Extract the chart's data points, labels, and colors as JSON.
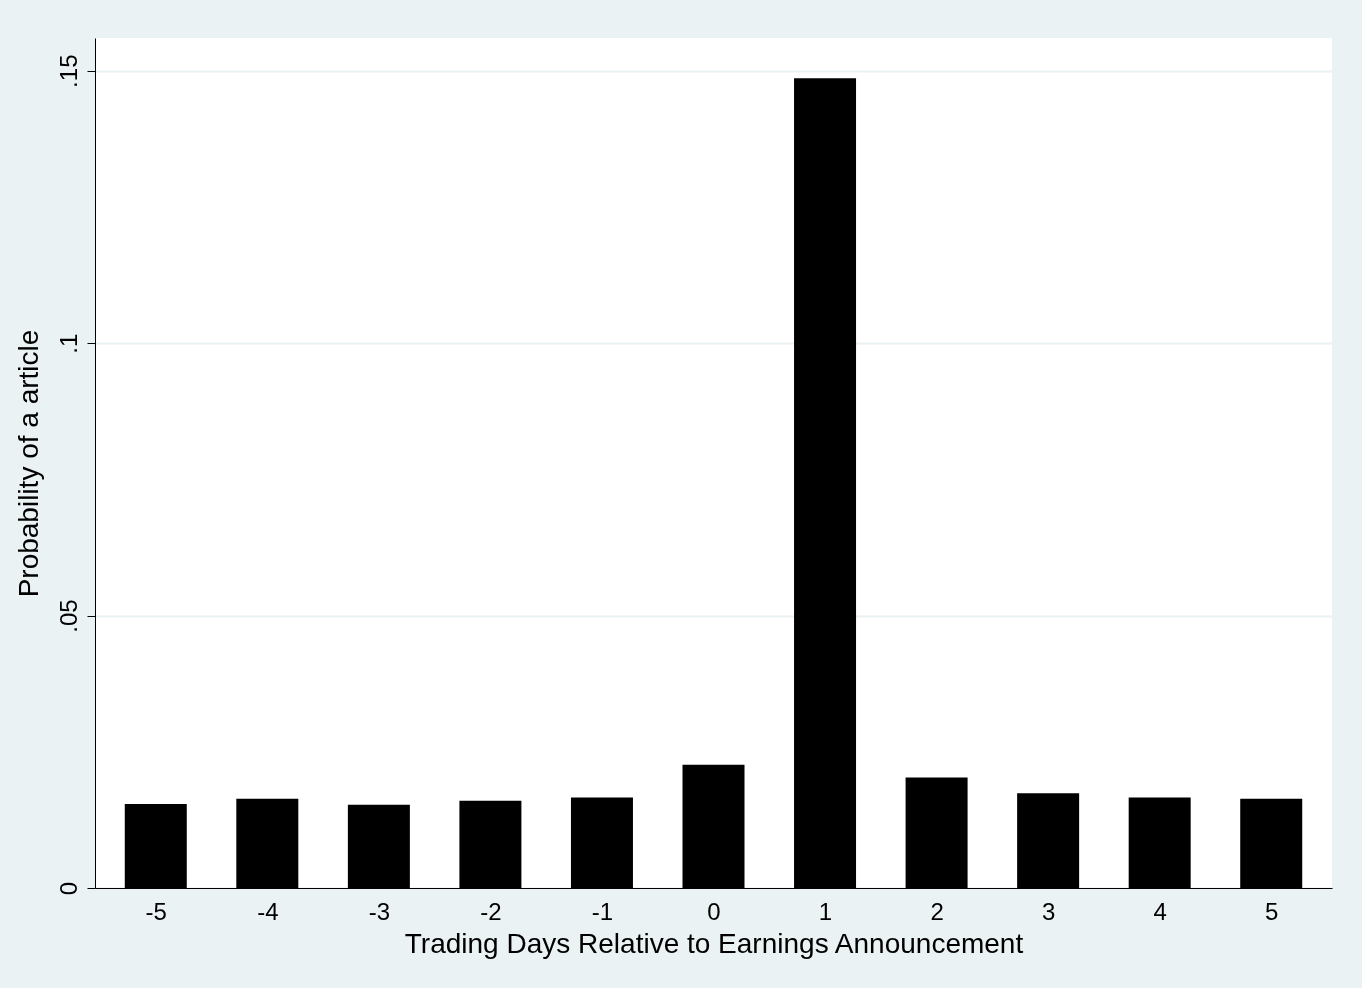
{
  "chart_data": {
    "type": "bar",
    "xlabel": "Trading Days Relative to Earnings Announcement",
    "ylabel": "Probability of a article",
    "categories": [
      "-5",
      "-4",
      "-3",
      "-2",
      "-1",
      "0",
      "1",
      "2",
      "3",
      "4",
      "5"
    ],
    "values": [
      0.0154,
      0.0164,
      0.0153,
      0.016,
      0.0166,
      0.0226,
      0.1486,
      0.0203,
      0.0174,
      0.0166,
      0.0164
    ],
    "color": "#000000",
    "ylim": [
      0,
      0.156
    ],
    "yticks": [
      0,
      {
        "value": 0.05,
        "label": ".05"
      },
      {
        "value": 0.1,
        "label": ".1"
      },
      {
        "value": 0.15,
        "label": ".15"
      }
    ],
    "grid": "y"
  }
}
